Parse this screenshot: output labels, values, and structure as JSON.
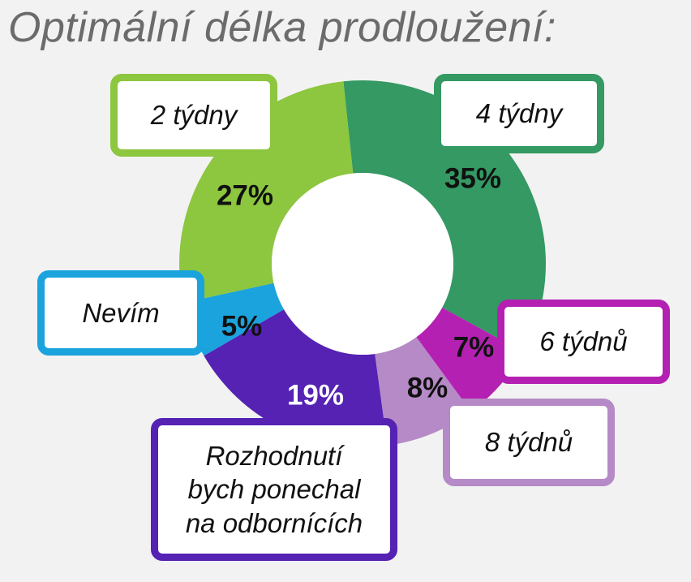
{
  "title": "Optimální délka prodloužení:",
  "chart_data": {
    "type": "pie",
    "variant": "donut",
    "unit": "%",
    "series": [
      {
        "values": [
          {
            "label": "4 týdny",
            "value": 35,
            "display": "35%",
            "color": "#349962",
            "label_color": "#111111"
          },
          {
            "label": "6 týdnů",
            "value": 7,
            "display": "7%",
            "color": "#b421b2",
            "label_color": "#111111"
          },
          {
            "label": "8 týdnů",
            "value": 8,
            "display": "8%",
            "color": "#b58ac6",
            "label_color": "#111111"
          },
          {
            "label": "Rozhodnutí bych ponechal na odbornících",
            "value": 19,
            "display": "19%",
            "color": "#5522b4",
            "label_color": "#ffffff"
          },
          {
            "label": "Nevím",
            "value": 5,
            "display": "5%",
            "color": "#1aa3dd",
            "label_color": "#111111"
          },
          {
            "label": "2 týdny",
            "value": 27,
            "display": "27%",
            "color": "#8dc63f",
            "label_color": "#111111"
          }
        ]
      }
    ],
    "callouts": [
      {
        "slice": 0,
        "lines": [
          "4 týdny"
        ]
      },
      {
        "slice": 1,
        "lines": [
          "6 týdnů"
        ]
      },
      {
        "slice": 2,
        "lines": [
          "8 týdnů"
        ]
      },
      {
        "slice": 3,
        "lines": [
          "Rozhodnutí",
          "bych ponechal",
          "na odbornících"
        ]
      },
      {
        "slice": 4,
        "lines": [
          "Nevím"
        ]
      },
      {
        "slice": 5,
        "lines": [
          "2 týdny"
        ]
      }
    ],
    "legend": "callouts"
  }
}
